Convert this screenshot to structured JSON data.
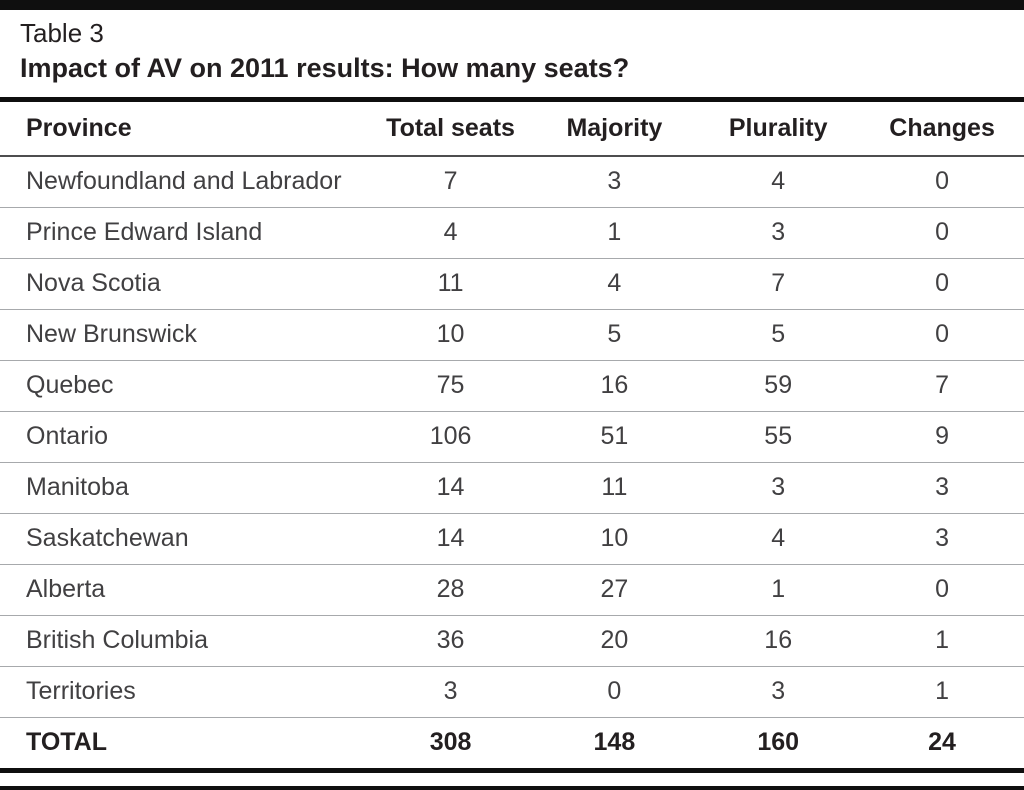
{
  "colors": {
    "rule": "#0f0f0f",
    "text": "#231f20",
    "body_text": "#414042",
    "row_line": "#a7a9ac",
    "header_line": "#4d4d4f"
  },
  "table": {
    "label": "Table 3",
    "title": "Impact of AV on 2011 results: How many seats?",
    "columns": [
      "Province",
      "Total seats",
      "Majority",
      "Plurality",
      "Changes"
    ],
    "rows": [
      [
        "Newfoundland and Labrador",
        "7",
        "3",
        "4",
        "0"
      ],
      [
        "Prince Edward Island",
        "4",
        "1",
        "3",
        "0"
      ],
      [
        "Nova Scotia",
        "11",
        "4",
        "7",
        "0"
      ],
      [
        "New Brunswick",
        "10",
        "5",
        "5",
        "0"
      ],
      [
        "Quebec",
        "75",
        "16",
        "59",
        "7"
      ],
      [
        "Ontario",
        "106",
        "51",
        "55",
        "9"
      ],
      [
        "Manitoba",
        "14",
        "11",
        "3",
        "3"
      ],
      [
        "Saskatchewan",
        "14",
        "10",
        "4",
        "3"
      ],
      [
        "Alberta",
        "28",
        "27",
        "1",
        "0"
      ],
      [
        "British Columbia",
        "36",
        "20",
        "16",
        "1"
      ],
      [
        "Territories",
        "3",
        "0",
        "3",
        "1"
      ]
    ],
    "total_row": [
      "TOTAL",
      "308",
      "148",
      "160",
      "24"
    ]
  },
  "chart_data": {
    "type": "table",
    "label": "Table 3",
    "title": "Impact of AV on 2011 results: How many seats?",
    "columns": [
      "Province",
      "Total seats",
      "Majority",
      "Plurality",
      "Changes"
    ],
    "rows": [
      [
        "Newfoundland and Labrador",
        7,
        3,
        4,
        0
      ],
      [
        "Prince Edward Island",
        4,
        1,
        3,
        0
      ],
      [
        "Nova Scotia",
        11,
        4,
        7,
        0
      ],
      [
        "New Brunswick",
        10,
        5,
        5,
        0
      ],
      [
        "Quebec",
        75,
        16,
        59,
        7
      ],
      [
        "Ontario",
        106,
        51,
        55,
        9
      ],
      [
        "Manitoba",
        14,
        11,
        3,
        3
      ],
      [
        "Saskatchewan",
        14,
        10,
        4,
        3
      ],
      [
        "Alberta",
        28,
        27,
        1,
        0
      ],
      [
        "British Columbia",
        36,
        20,
        16,
        1
      ],
      [
        "Territories",
        3,
        0,
        3,
        1
      ],
      [
        "TOTAL",
        308,
        148,
        160,
        24
      ]
    ]
  }
}
